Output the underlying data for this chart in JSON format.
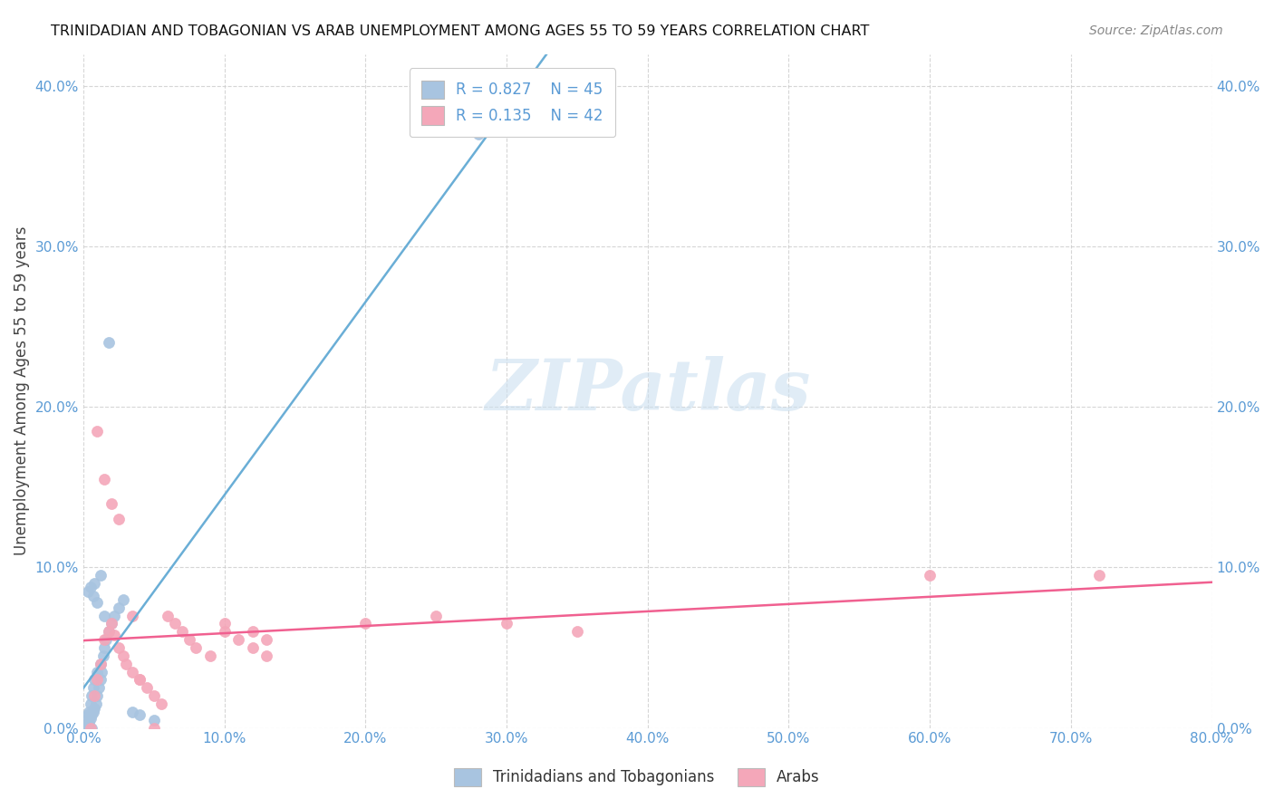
{
  "title": "TRINIDADIAN AND TOBAGONIAN VS ARAB UNEMPLOYMENT AMONG AGES 55 TO 59 YEARS CORRELATION CHART",
  "source": "Source: ZipAtlas.com",
  "ylabel": "Unemployment Among Ages 55 to 59 years",
  "xlim": [
    0.0,
    0.8
  ],
  "ylim": [
    0.0,
    0.42
  ],
  "xtick_vals": [
    0.0,
    0.1,
    0.2,
    0.3,
    0.4,
    0.5,
    0.6,
    0.7,
    0.8
  ],
  "xtick_labels": [
    "0.0%",
    "10.0%",
    "20.0%",
    "30.0%",
    "40.0%",
    "50.0%",
    "60.0%",
    "70.0%",
    "80.0%"
  ],
  "ytick_vals": [
    0.0,
    0.1,
    0.2,
    0.3,
    0.4
  ],
  "ytick_labels": [
    "0.0%",
    "10.0%",
    "20.0%",
    "30.0%",
    "40.0%"
  ],
  "R_trini": 0.827,
  "N_trini": 45,
  "R_arab": 0.135,
  "N_arab": 42,
  "legend_labels": [
    "Trinidadians and Tobagonians",
    "Arabs"
  ],
  "trini_color": "#a8c4e0",
  "arab_color": "#f4a7b9",
  "trini_line_color": "#6aaed6",
  "arab_line_color": "#f06090",
  "background_color": "#ffffff",
  "watermark": "ZIPatlas",
  "trini_x": [
    0.001,
    0.002,
    0.002,
    0.003,
    0.003,
    0.004,
    0.004,
    0.005,
    0.005,
    0.006,
    0.006,
    0.007,
    0.007,
    0.008,
    0.008,
    0.009,
    0.01,
    0.01,
    0.011,
    0.012,
    0.012,
    0.013,
    0.014,
    0.015,
    0.016,
    0.018,
    0.02,
    0.022,
    0.025,
    0.028,
    0.003,
    0.005,
    0.007,
    0.008,
    0.01,
    0.012,
    0.015,
    0.003,
    0.004,
    0.006,
    0.035,
    0.04,
    0.05,
    0.28,
    0.018
  ],
  "trini_y": [
    0.0,
    0.002,
    0.005,
    0.003,
    0.008,
    0.004,
    0.01,
    0.006,
    0.015,
    0.008,
    0.02,
    0.01,
    0.025,
    0.012,
    0.03,
    0.015,
    0.02,
    0.035,
    0.025,
    0.03,
    0.04,
    0.035,
    0.045,
    0.05,
    0.055,
    0.06,
    0.065,
    0.07,
    0.075,
    0.08,
    0.085,
    0.088,
    0.082,
    0.09,
    0.078,
    0.095,
    0.07,
    0.0,
    0.001,
    0.0,
    0.01,
    0.008,
    0.005,
    0.37,
    0.24
  ],
  "arab_x": [
    0.005,
    0.008,
    0.01,
    0.012,
    0.015,
    0.018,
    0.02,
    0.022,
    0.025,
    0.028,
    0.03,
    0.035,
    0.04,
    0.045,
    0.05,
    0.055,
    0.06,
    0.065,
    0.07,
    0.075,
    0.08,
    0.09,
    0.1,
    0.11,
    0.12,
    0.13,
    0.3,
    0.35,
    0.6,
    0.72,
    0.01,
    0.015,
    0.02,
    0.025,
    0.035,
    0.04,
    0.05,
    0.1,
    0.12,
    0.13,
    0.2,
    0.25
  ],
  "arab_y": [
    0.0,
    0.02,
    0.03,
    0.04,
    0.055,
    0.06,
    0.065,
    0.058,
    0.05,
    0.045,
    0.04,
    0.035,
    0.03,
    0.025,
    0.02,
    0.015,
    0.07,
    0.065,
    0.06,
    0.055,
    0.05,
    0.045,
    0.06,
    0.055,
    0.05,
    0.045,
    0.065,
    0.06,
    0.095,
    0.095,
    0.185,
    0.155,
    0.14,
    0.13,
    0.07,
    0.03,
    0.0,
    0.065,
    0.06,
    0.055,
    0.065,
    0.07
  ]
}
